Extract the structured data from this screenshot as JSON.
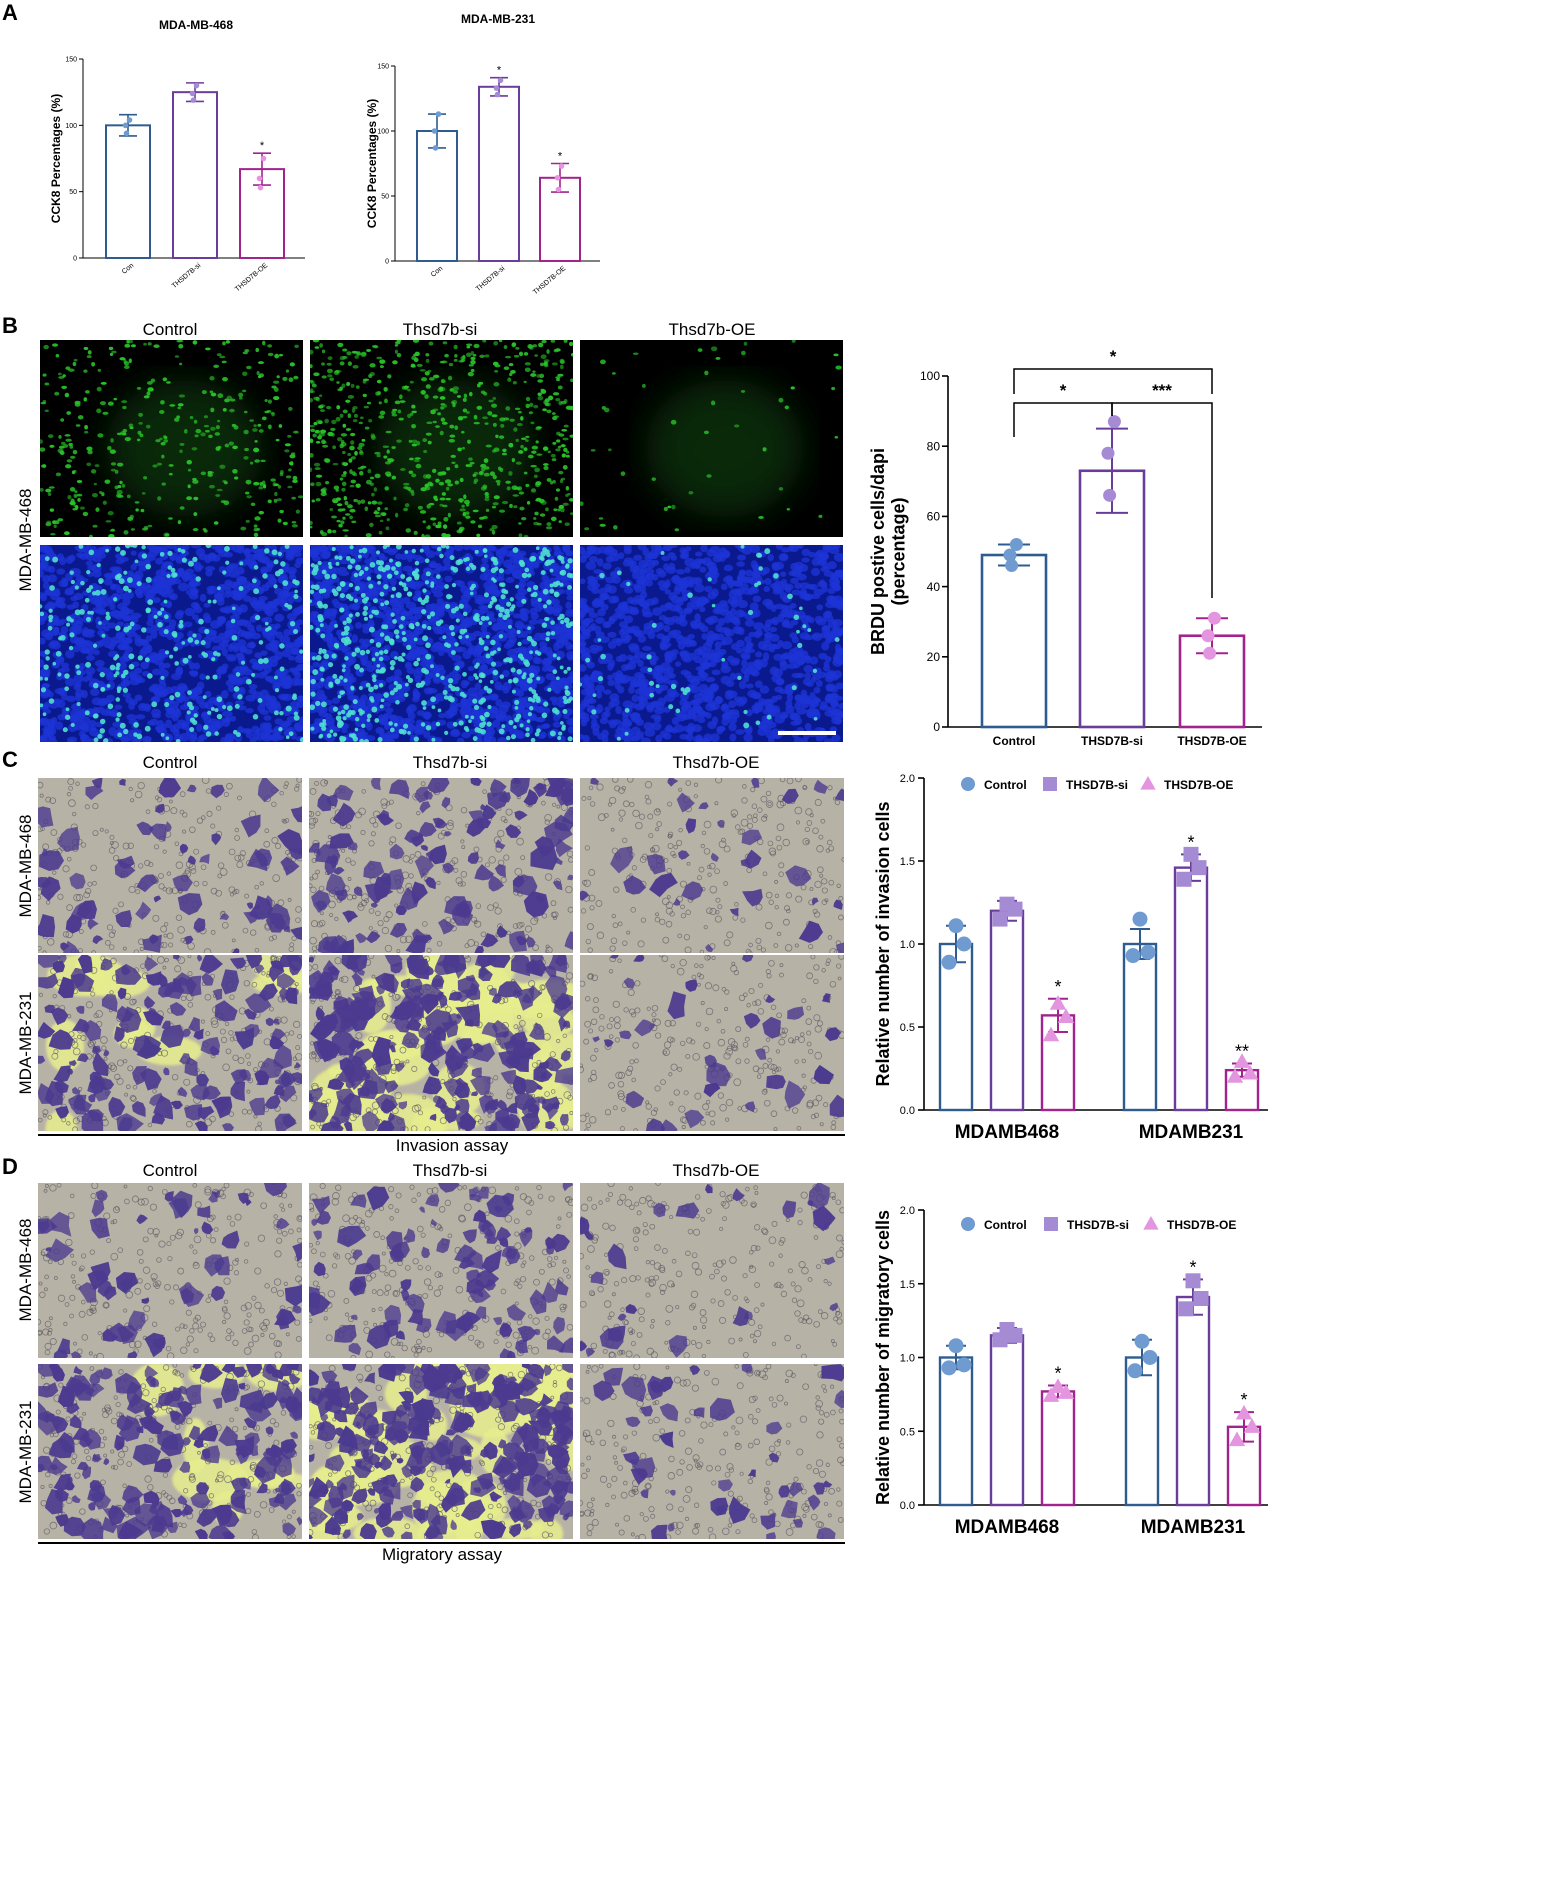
{
  "panels": {
    "A": "A",
    "B": "B",
    "C": "C",
    "D": "D"
  },
  "colors": {
    "control": "#2e5c8f",
    "si": "#6a3d9a",
    "oe": "#a2238e",
    "control_pt": "#6f9bd0",
    "si_pt": "#a58bd4",
    "oe_pt": "#e495e0",
    "green_fluor": "#29c329",
    "dapi": "#1d33d6",
    "stain": "#4b3a8f",
    "field": "#b7b2a6",
    "field_yellow": "#e7ee8d"
  },
  "panel_b": {
    "col_labels": [
      "Control",
      "Thsd7b-si",
      "Thsd7b-OE"
    ],
    "row_label": "MDA-MB-468"
  },
  "panel_c": {
    "col_labels": [
      "Control",
      "Thsd7b-si",
      "Thsd7b-OE"
    ],
    "row_labels": [
      "MDA-MB-468",
      "MDA-MB-231"
    ],
    "caption": "Invasion assay"
  },
  "panel_d": {
    "col_labels": [
      "Control",
      "Thsd7b-si",
      "Thsd7b-OE"
    ],
    "row_labels": [
      "MDA-MB-468",
      "MDA-MB-231"
    ],
    "caption": "Migratory assay"
  },
  "chart_data": [
    {
      "id": "a1",
      "type": "bar",
      "title": "MDA-MB-468",
      "ylabel": "CCK8 Percentages (%)",
      "categories": [
        "Con",
        "THSD7B-si",
        "THSD7B-OE"
      ],
      "values": [
        100,
        125,
        67
      ],
      "errors": [
        8,
        7,
        12
      ],
      "points": [
        [
          94,
          100,
          104
        ],
        [
          119,
          124,
          130
        ],
        [
          53,
          60,
          75
        ]
      ],
      "significance": [
        "",
        "",
        "*"
      ],
      "ylim": [
        0,
        150
      ],
      "yticks": [
        0,
        50,
        100,
        150
      ]
    },
    {
      "id": "a2",
      "type": "bar",
      "title": "MDA-MB-231",
      "ylabel": "CCK8 Percentages (%)",
      "categories": [
        "Con",
        "THSD7B-si",
        "THSD7B-OE"
      ],
      "values": [
        100,
        134,
        64
      ],
      "errors": [
        13,
        7,
        11
      ],
      "points": [
        [
          87,
          100,
          113
        ],
        [
          128,
          133,
          139
        ],
        [
          55,
          64,
          73
        ]
      ],
      "significance": [
        "",
        "*",
        "*"
      ],
      "ylim": [
        0,
        150
      ],
      "yticks": [
        0,
        50,
        100,
        150
      ]
    },
    {
      "id": "b",
      "type": "bar",
      "ylabel": "BRDU postive cells/dapi",
      "ylabel2": "(percentage)",
      "categories": [
        "Control",
        "THSD7B-si",
        "THSD7B-OE"
      ],
      "values": [
        49,
        73,
        26
      ],
      "errors": [
        3,
        12,
        5
      ],
      "points": [
        [
          46,
          49,
          52
        ],
        [
          66,
          78,
          87
        ],
        [
          21,
          26,
          31
        ]
      ],
      "ylim": [
        0,
        100
      ],
      "yticks": [
        0,
        20,
        40,
        60,
        80,
        100
      ],
      "brackets": [
        {
          "from": 0,
          "to": 1,
          "label": "*"
        },
        {
          "from": 1,
          "to": 2,
          "label": "***"
        },
        {
          "from": 0,
          "to": 2,
          "label": "*"
        }
      ]
    },
    {
      "id": "c",
      "type": "bar",
      "ylabel": "Relative number of invasion cells",
      "groups": [
        "MDAMB468",
        "MDAMB231"
      ],
      "series": [
        {
          "name": "Control",
          "marker": "circle",
          "values": [
            1.0,
            1.0
          ],
          "errors": [
            0.11,
            0.09
          ],
          "points": [
            [
              0.89,
              1.0,
              1.11
            ],
            [
              0.93,
              0.95,
              1.15
            ]
          ],
          "significance": [
            "",
            ""
          ]
        },
        {
          "name": "THSD7B-si",
          "marker": "square",
          "values": [
            1.2,
            1.46
          ],
          "errors": [
            0.06,
            0.08
          ],
          "points": [
            [
              1.15,
              1.21,
              1.24
            ],
            [
              1.39,
              1.46,
              1.54
            ]
          ],
          "significance": [
            "",
            "*"
          ]
        },
        {
          "name": "THSD7B-OE",
          "marker": "triangle",
          "values": [
            0.57,
            0.24
          ],
          "errors": [
            0.1,
            0.04
          ],
          "points": [
            [
              0.45,
              0.56,
              0.64
            ],
            [
              0.2,
              0.22,
              0.29
            ]
          ],
          "significance": [
            "*",
            "**"
          ]
        }
      ],
      "ylim": [
        0,
        2.0
      ],
      "yticks": [
        0.0,
        0.5,
        1.0,
        1.5,
        2.0
      ],
      "legend": "top"
    },
    {
      "id": "d",
      "type": "bar",
      "ylabel": "Relative number of migratory cells",
      "groups": [
        "MDAMB468",
        "MDAMB231"
      ],
      "series": [
        {
          "name": "Control",
          "marker": "circle",
          "values": [
            1.0,
            1.0
          ],
          "errors": [
            0.08,
            0.12
          ],
          "points": [
            [
              0.93,
              0.95,
              1.08
            ],
            [
              0.91,
              1.0,
              1.11
            ]
          ],
          "significance": [
            "",
            ""
          ]
        },
        {
          "name": "THSD7B-si",
          "marker": "square",
          "values": [
            1.15,
            1.41
          ],
          "errors": [
            0.05,
            0.12
          ],
          "points": [
            [
              1.12,
              1.15,
              1.19
            ],
            [
              1.33,
              1.4,
              1.52
            ]
          ],
          "significance": [
            "",
            "*"
          ]
        },
        {
          "name": "THSD7B-OE",
          "marker": "triangle",
          "values": [
            0.77,
            0.53
          ],
          "errors": [
            0.04,
            0.1
          ],
          "points": [
            [
              0.74,
              0.76,
              0.8
            ],
            [
              0.44,
              0.53,
              0.62
            ]
          ],
          "significance": [
            "*",
            "*"
          ]
        }
      ],
      "ylim": [
        0,
        2.0
      ],
      "yticks": [
        0.0,
        0.5,
        1.0,
        1.5,
        2.0
      ],
      "legend": "top"
    }
  ]
}
